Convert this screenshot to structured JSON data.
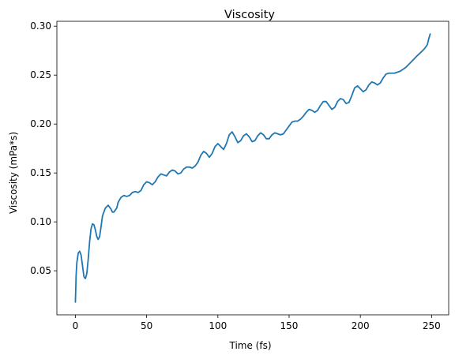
{
  "chart_data": {
    "type": "line",
    "title": "Viscosity",
    "xlabel": "Time (fs)",
    "ylabel": "Viscosity (mPa*s)",
    "xlim": [
      -13,
      262
    ],
    "ylim": [
      0.005,
      0.305
    ],
    "xticks": [
      0,
      50,
      100,
      150,
      200,
      250
    ],
    "yticks": [
      0.05,
      0.1,
      0.15,
      0.2,
      0.25,
      0.3
    ],
    "ytick_labels": [
      "0.05",
      "0.10",
      "0.15",
      "0.20",
      "0.25",
      "0.30"
    ],
    "grid": false,
    "series": [
      {
        "color": "#1f77b4",
        "points": [
          [
            0,
            0.018
          ],
          [
            0.5,
            0.045
          ],
          [
            1,
            0.058
          ],
          [
            2,
            0.068
          ],
          [
            3,
            0.07
          ],
          [
            4,
            0.066
          ],
          [
            5,
            0.055
          ],
          [
            6,
            0.044
          ],
          [
            7,
            0.042
          ],
          [
            8,
            0.047
          ],
          [
            9,
            0.062
          ],
          [
            10,
            0.08
          ],
          [
            11,
            0.093
          ],
          [
            12,
            0.098
          ],
          [
            13,
            0.097
          ],
          [
            14,
            0.092
          ],
          [
            15,
            0.085
          ],
          [
            16,
            0.082
          ],
          [
            17,
            0.085
          ],
          [
            18,
            0.095
          ],
          [
            19,
            0.106
          ],
          [
            21,
            0.114
          ],
          [
            23,
            0.117
          ],
          [
            25,
            0.113
          ],
          [
            26,
            0.11
          ],
          [
            27,
            0.11
          ],
          [
            29,
            0.114
          ],
          [
            30,
            0.12
          ],
          [
            32,
            0.125
          ],
          [
            34,
            0.127
          ],
          [
            36,
            0.126
          ],
          [
            38,
            0.127
          ],
          [
            40,
            0.13
          ],
          [
            42,
            0.131
          ],
          [
            44,
            0.13
          ],
          [
            46,
            0.132
          ],
          [
            48,
            0.138
          ],
          [
            50,
            0.141
          ],
          [
            52,
            0.14
          ],
          [
            54,
            0.138
          ],
          [
            56,
            0.141
          ],
          [
            58,
            0.146
          ],
          [
            60,
            0.149
          ],
          [
            62,
            0.148
          ],
          [
            64,
            0.147
          ],
          [
            66,
            0.151
          ],
          [
            68,
            0.153
          ],
          [
            70,
            0.152
          ],
          [
            72,
            0.149
          ],
          [
            74,
            0.15
          ],
          [
            76,
            0.154
          ],
          [
            78,
            0.156
          ],
          [
            80,
            0.156
          ],
          [
            82,
            0.155
          ],
          [
            84,
            0.157
          ],
          [
            86,
            0.161
          ],
          [
            88,
            0.168
          ],
          [
            90,
            0.172
          ],
          [
            92,
            0.17
          ],
          [
            94,
            0.166
          ],
          [
            96,
            0.17
          ],
          [
            98,
            0.177
          ],
          [
            100,
            0.18
          ],
          [
            102,
            0.177
          ],
          [
            104,
            0.174
          ],
          [
            106,
            0.18
          ],
          [
            108,
            0.189
          ],
          [
            110,
            0.192
          ],
          [
            112,
            0.187
          ],
          [
            114,
            0.181
          ],
          [
            116,
            0.183
          ],
          [
            118,
            0.188
          ],
          [
            120,
            0.19
          ],
          [
            122,
            0.187
          ],
          [
            124,
            0.182
          ],
          [
            126,
            0.183
          ],
          [
            128,
            0.188
          ],
          [
            130,
            0.191
          ],
          [
            132,
            0.189
          ],
          [
            134,
            0.185
          ],
          [
            136,
            0.185
          ],
          [
            138,
            0.189
          ],
          [
            140,
            0.191
          ],
          [
            142,
            0.19
          ],
          [
            144,
            0.189
          ],
          [
            146,
            0.19
          ],
          [
            148,
            0.194
          ],
          [
            150,
            0.198
          ],
          [
            152,
            0.202
          ],
          [
            154,
            0.203
          ],
          [
            156,
            0.203
          ],
          [
            158,
            0.205
          ],
          [
            160,
            0.208
          ],
          [
            162,
            0.212
          ],
          [
            164,
            0.215
          ],
          [
            166,
            0.214
          ],
          [
            168,
            0.212
          ],
          [
            170,
            0.214
          ],
          [
            172,
            0.219
          ],
          [
            174,
            0.223
          ],
          [
            176,
            0.223
          ],
          [
            178,
            0.219
          ],
          [
            180,
            0.215
          ],
          [
            182,
            0.217
          ],
          [
            184,
            0.223
          ],
          [
            186,
            0.226
          ],
          [
            188,
            0.225
          ],
          [
            190,
            0.221
          ],
          [
            192,
            0.222
          ],
          [
            194,
            0.229
          ],
          [
            196,
            0.237
          ],
          [
            198,
            0.239
          ],
          [
            200,
            0.236
          ],
          [
            202,
            0.233
          ],
          [
            204,
            0.235
          ],
          [
            206,
            0.24
          ],
          [
            208,
            0.243
          ],
          [
            210,
            0.242
          ],
          [
            212,
            0.24
          ],
          [
            214,
            0.242
          ],
          [
            216,
            0.247
          ],
          [
            218,
            0.251
          ],
          [
            220,
            0.252
          ],
          [
            224,
            0.252
          ],
          [
            228,
            0.254
          ],
          [
            232,
            0.258
          ],
          [
            236,
            0.264
          ],
          [
            240,
            0.27
          ],
          [
            243,
            0.274
          ],
          [
            245,
            0.277
          ],
          [
            247,
            0.281
          ],
          [
            248,
            0.287
          ],
          [
            249,
            0.292
          ]
        ]
      }
    ]
  }
}
